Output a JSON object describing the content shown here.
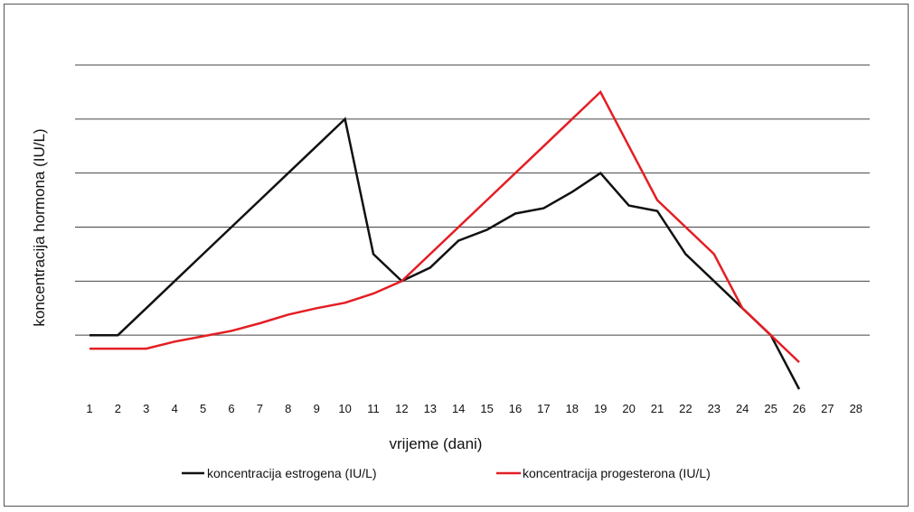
{
  "chart_data": {
    "type": "line",
    "title": "",
    "xlabel": "vrijeme (dani)",
    "ylabel": "koncentracija hormona (IU/L)",
    "x": [
      1,
      2,
      3,
      4,
      5,
      6,
      7,
      8,
      9,
      10,
      11,
      12,
      13,
      14,
      15,
      16,
      17,
      18,
      19,
      20,
      21,
      22,
      23,
      24,
      25,
      26,
      27,
      28
    ],
    "ylim": [
      0,
      6
    ],
    "grid": true,
    "legend_position": "bottom",
    "series": [
      {
        "name": "koncentracija estrogena (IU/L)",
        "color": "#111111",
        "x": [
          1,
          2,
          3,
          4,
          5,
          6,
          7,
          8,
          9,
          10,
          11,
          12,
          13,
          14,
          15,
          16,
          17,
          18,
          19,
          20,
          21,
          22,
          23,
          24,
          25,
          26
        ],
        "values": [
          1.0,
          1.0,
          1.5,
          2.0,
          2.5,
          3.0,
          3.5,
          4.0,
          4.5,
          5.0,
          2.5,
          2.0,
          2.25,
          2.75,
          2.95,
          3.25,
          3.35,
          3.65,
          4.0,
          3.4,
          3.3,
          2.5,
          2.0,
          1.5,
          1.0,
          0.0
        ]
      },
      {
        "name": "koncentracija progesterona (IU/L)",
        "color": "#e31e24",
        "x": [
          1,
          2,
          3,
          4,
          5,
          6,
          7,
          8,
          9,
          10,
          11,
          12,
          13,
          14,
          15,
          16,
          17,
          18,
          19,
          20,
          21,
          22,
          23,
          24,
          25,
          26
        ],
        "values": [
          0.75,
          0.75,
          0.75,
          0.88,
          0.98,
          1.08,
          1.22,
          1.38,
          1.5,
          1.6,
          1.77,
          2.0,
          2.5,
          3.0,
          3.5,
          4.0,
          4.5,
          5.0,
          5.5,
          4.5,
          3.5,
          3.0,
          2.5,
          1.5,
          1.0,
          0.5
        ]
      }
    ]
  }
}
